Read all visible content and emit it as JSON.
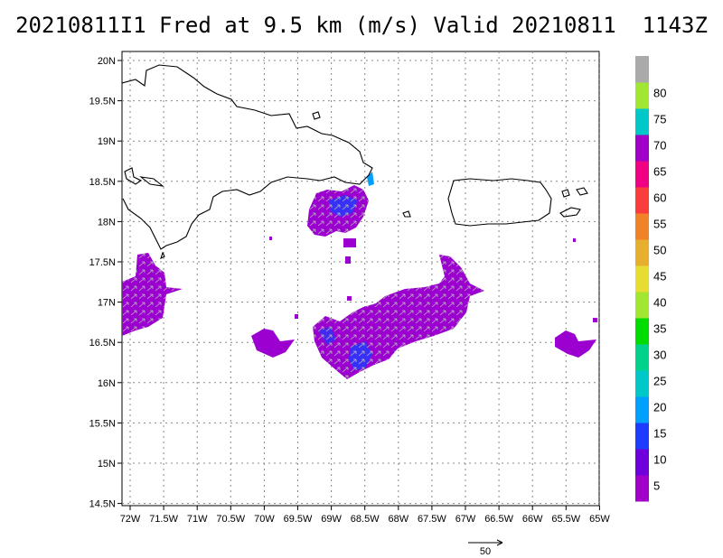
{
  "title": "20210811I1 Fred at 9.5 km (m/s) Valid 20210811  1143Z",
  "lat_labels": [
    "20N",
    "19.5N",
    "19N",
    "18.5N",
    "18N",
    "17.5N",
    "17N",
    "16.5N",
    "16N",
    "15.5N",
    "15N",
    "14.5N"
  ],
  "lon_labels": [
    "72W",
    "71.5W",
    "71W",
    "70.5W",
    "70W",
    "69.5W",
    "69W",
    "68.5W",
    "68W",
    "67.5W",
    "67W",
    "66.5W",
    "66W",
    "65.5W",
    "65W"
  ],
  "colorbar": {
    "labels": [
      "5",
      "10",
      "15",
      "20",
      "25",
      "30",
      "35",
      "40",
      "45",
      "50",
      "55",
      "60",
      "65",
      "70",
      "75",
      "80"
    ],
    "colors": [
      "#a000c8",
      "#6e00dc",
      "#1e3cff",
      "#00a0ff",
      "#00c8c8",
      "#00d28c",
      "#00dc00",
      "#a0e632",
      "#e6dc32",
      "#e6af2d",
      "#f08228",
      "#fa3c3c",
      "#f00082",
      "#a000c8",
      "#00c8c8",
      "#a0e632",
      "#aaaaaa"
    ]
  },
  "reference_vector": {
    "label": "50"
  },
  "colors": {
    "wind": "#9b00d0",
    "wind_core": "#1e3cff",
    "coast": "#000000",
    "grid": "#888888",
    "barb": "#aaaaaa"
  }
}
